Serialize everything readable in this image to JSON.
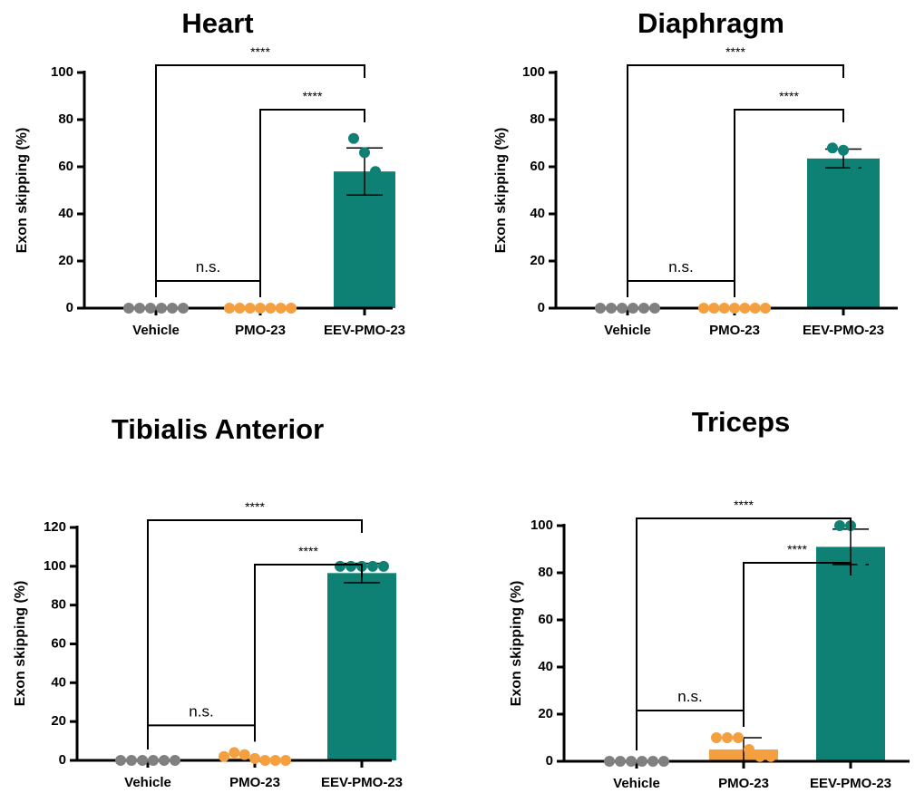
{
  "chart_data": [
    {
      "type": "bar",
      "title": "Heart",
      "ylabel": "Exon skipping (%)",
      "categories": [
        "Vehicle",
        "PMO-23",
        "EEV-PMO-23"
      ],
      "colors": [
        "#808080",
        "#f5a040",
        "#0e8074"
      ],
      "yticks": [
        0,
        20,
        40,
        60,
        80,
        100
      ],
      "ylim": [
        0,
        100
      ],
      "values": [
        0,
        0,
        58
      ],
      "error_low": [
        0,
        0,
        48
      ],
      "error_high": [
        0,
        0,
        68
      ],
      "points": [
        [
          0,
          0,
          0,
          0,
          0,
          0
        ],
        [
          0,
          0,
          0,
          0,
          0,
          0,
          0
        ],
        [
          72,
          66,
          58
        ]
      ],
      "comparisons": [
        {
          "from": 0,
          "to": 2,
          "label": "****"
        },
        {
          "from": 1,
          "to": 2,
          "label": "****"
        },
        {
          "from": 0,
          "to": 1,
          "label": "n.s."
        }
      ]
    },
    {
      "type": "bar",
      "title": "Diaphragm",
      "ylabel": "Exon skipping (%)",
      "categories": [
        "Vehicle",
        "PMO-23",
        "EEV-PMO-23"
      ],
      "colors": [
        "#808080",
        "#f5a040",
        "#0e8074"
      ],
      "yticks": [
        0,
        20,
        40,
        60,
        80,
        100
      ],
      "ylim": [
        0,
        100
      ],
      "values": [
        0,
        0,
        63.5
      ],
      "error_low": [
        0,
        0,
        59.5
      ],
      "error_high": [
        0,
        0,
        67.5
      ],
      "points": [
        [
          0,
          0,
          0,
          0,
          0,
          0
        ],
        [
          0,
          0,
          0,
          0,
          0,
          0,
          0
        ],
        [
          68,
          67,
          61
        ]
      ],
      "comparisons": [
        {
          "from": 0,
          "to": 2,
          "label": "****"
        },
        {
          "from": 1,
          "to": 2,
          "label": "****"
        },
        {
          "from": 0,
          "to": 1,
          "label": "n.s."
        }
      ]
    },
    {
      "type": "bar",
      "title": "Tibialis Anterior",
      "ylabel": "Exon skipping (%)",
      "categories": [
        "Vehicle",
        "PMO-23",
        "EEV-PMO-23"
      ],
      "colors": [
        "#808080",
        "#f5a040",
        "#0e8074"
      ],
      "yticks": [
        0,
        20,
        40,
        60,
        80,
        100,
        120
      ],
      "ylim": [
        0,
        120
      ],
      "values": [
        0,
        1.2,
        96.5
      ],
      "error_low": [
        0,
        0,
        91.5
      ],
      "error_high": [
        0,
        0,
        101.5
      ],
      "points": [
        [
          0,
          0,
          0,
          0,
          0,
          0
        ],
        [
          2,
          4,
          3,
          1,
          0,
          0,
          0
        ],
        [
          100,
          100,
          100,
          100,
          100
        ]
      ],
      "comparisons": [
        {
          "from": 0,
          "to": 2,
          "label": "****"
        },
        {
          "from": 1,
          "to": 2,
          "label": "****"
        },
        {
          "from": 0,
          "to": 1,
          "label": "n.s."
        }
      ]
    },
    {
      "type": "bar",
      "title": "Triceps",
      "ylabel": "Exon skipping (%)",
      "categories": [
        "Vehicle",
        "PMO-23",
        "EEV-PMO-23"
      ],
      "colors": [
        "#808080",
        "#f5a040",
        "#0e8074"
      ],
      "yticks": [
        0,
        20,
        40,
        60,
        80,
        100
      ],
      "ylim": [
        0,
        100
      ],
      "values": [
        0,
        5,
        91
      ],
      "error_low": [
        0,
        0,
        83.5
      ],
      "error_high": [
        0,
        10,
        98.5
      ],
      "points": [
        [
          0,
          0,
          0,
          0,
          0,
          0
        ],
        [
          10,
          10,
          10,
          5,
          2,
          2
        ],
        [
          100,
          100,
          85
        ]
      ],
      "comparisons": [
        {
          "from": 0,
          "to": 2,
          "label": "****"
        },
        {
          "from": 1,
          "to": 2,
          "label": "****"
        },
        {
          "from": 0,
          "to": 1,
          "label": "n.s."
        }
      ]
    }
  ]
}
